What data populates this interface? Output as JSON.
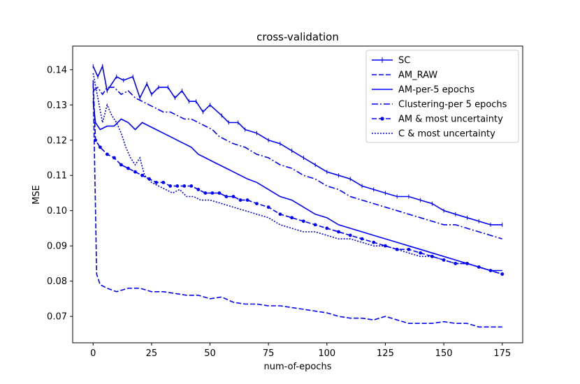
{
  "chart_data": {
    "type": "line",
    "title": "cross-validation",
    "xlabel": "num-of-epochs",
    "ylabel": "MSE",
    "xlim": [
      -8.75,
      183.75
    ],
    "ylim": [
      0.0625,
      0.1467
    ],
    "xticks": [
      0,
      25,
      50,
      75,
      100,
      125,
      150,
      175
    ],
    "yticks": [
      0.07,
      0.08,
      0.09,
      0.1,
      0.11,
      0.12,
      0.13,
      0.14
    ],
    "ytick_labels": [
      "0.07",
      "0.08",
      "0.09",
      "0.10",
      "0.11",
      "0.12",
      "0.13",
      "0.14"
    ],
    "grid": false,
    "legend_position": "top-right",
    "color": "#0000ff",
    "series": [
      {
        "name": "SC",
        "style": "solid-plus",
        "points": [
          [
            0,
            0.141
          ],
          [
            2,
            0.138
          ],
          [
            4,
            0.141
          ],
          [
            6,
            0.134
          ],
          [
            10,
            0.138
          ],
          [
            13,
            0.137
          ],
          [
            17,
            0.138
          ],
          [
            20,
            0.132
          ],
          [
            23,
            0.136
          ],
          [
            25,
            0.133
          ],
          [
            28,
            0.135
          ],
          [
            32,
            0.135
          ],
          [
            35,
            0.132
          ],
          [
            38,
            0.134
          ],
          [
            41,
            0.131
          ],
          [
            44,
            0.131
          ],
          [
            47,
            0.128
          ],
          [
            50,
            0.13
          ],
          [
            55,
            0.127
          ],
          [
            58,
            0.125
          ],
          [
            62,
            0.125
          ],
          [
            65,
            0.123
          ],
          [
            70,
            0.122
          ],
          [
            75,
            0.12
          ],
          [
            80,
            0.119
          ],
          [
            85,
            0.117
          ],
          [
            90,
            0.115
          ],
          [
            95,
            0.113
          ],
          [
            100,
            0.111
          ],
          [
            105,
            0.11
          ],
          [
            110,
            0.109
          ],
          [
            115,
            0.107
          ],
          [
            120,
            0.106
          ],
          [
            125,
            0.105
          ],
          [
            130,
            0.104
          ],
          [
            135,
            0.104
          ],
          [
            140,
            0.103
          ],
          [
            145,
            0.102
          ],
          [
            150,
            0.1
          ],
          [
            155,
            0.099
          ],
          [
            160,
            0.098
          ],
          [
            165,
            0.097
          ],
          [
            170,
            0.096
          ],
          [
            175,
            0.096
          ]
        ]
      },
      {
        "name": "AM_RAW",
        "style": "dashed",
        "points": [
          [
            0,
            0.136
          ],
          [
            1,
            0.101
          ],
          [
            1.5,
            0.082
          ],
          [
            3,
            0.079
          ],
          [
            6,
            0.078
          ],
          [
            10,
            0.077
          ],
          [
            15,
            0.078
          ],
          [
            20,
            0.078
          ],
          [
            25,
            0.077
          ],
          [
            30,
            0.077
          ],
          [
            35,
            0.0765
          ],
          [
            40,
            0.076
          ],
          [
            45,
            0.076
          ],
          [
            50,
            0.075
          ],
          [
            55,
            0.0755
          ],
          [
            60,
            0.074
          ],
          [
            65,
            0.0735
          ],
          [
            70,
            0.0735
          ],
          [
            75,
            0.073
          ],
          [
            80,
            0.073
          ],
          [
            85,
            0.0725
          ],
          [
            90,
            0.072
          ],
          [
            95,
            0.0715
          ],
          [
            100,
            0.071
          ],
          [
            105,
            0.07
          ],
          [
            110,
            0.0695
          ],
          [
            115,
            0.0695
          ],
          [
            120,
            0.069
          ],
          [
            125,
            0.07
          ],
          [
            130,
            0.069
          ],
          [
            135,
            0.068
          ],
          [
            140,
            0.068
          ],
          [
            145,
            0.068
          ],
          [
            150,
            0.0685
          ],
          [
            155,
            0.068
          ],
          [
            160,
            0.068
          ],
          [
            165,
            0.067
          ],
          [
            170,
            0.067
          ],
          [
            175,
            0.067
          ]
        ]
      },
      {
        "name": "AM-per-5 epochs",
        "style": "solid",
        "points": [
          [
            0,
            0.131
          ],
          [
            1,
            0.125
          ],
          [
            3,
            0.123
          ],
          [
            6,
            0.124
          ],
          [
            9,
            0.124
          ],
          [
            12,
            0.126
          ],
          [
            15,
            0.125
          ],
          [
            18,
            0.123
          ],
          [
            21,
            0.125
          ],
          [
            24,
            0.124
          ],
          [
            27,
            0.123
          ],
          [
            30,
            0.122
          ],
          [
            33,
            0.121
          ],
          [
            36,
            0.12
          ],
          [
            39,
            0.119
          ],
          [
            42,
            0.118
          ],
          [
            45,
            0.116
          ],
          [
            48,
            0.115
          ],
          [
            51,
            0.114
          ],
          [
            54,
            0.113
          ],
          [
            57,
            0.112
          ],
          [
            60,
            0.111
          ],
          [
            63,
            0.11
          ],
          [
            66,
            0.109
          ],
          [
            70,
            0.108
          ],
          [
            75,
            0.106
          ],
          [
            80,
            0.104
          ],
          [
            85,
            0.103
          ],
          [
            90,
            0.101
          ],
          [
            95,
            0.099
          ],
          [
            100,
            0.098
          ],
          [
            105,
            0.096
          ],
          [
            110,
            0.095
          ],
          [
            115,
            0.094
          ],
          [
            120,
            0.093
          ],
          [
            125,
            0.092
          ],
          [
            130,
            0.091
          ],
          [
            135,
            0.09
          ],
          [
            140,
            0.089
          ],
          [
            145,
            0.088
          ],
          [
            150,
            0.087
          ],
          [
            155,
            0.086
          ],
          [
            160,
            0.085
          ],
          [
            165,
            0.084
          ],
          [
            170,
            0.083
          ],
          [
            175,
            0.083
          ]
        ]
      },
      {
        "name": "Clustering-per 5 epochs",
        "style": "dashdot",
        "points": [
          [
            0,
            0.134
          ],
          [
            2,
            0.135
          ],
          [
            4,
            0.133
          ],
          [
            6,
            0.135
          ],
          [
            9,
            0.135
          ],
          [
            12,
            0.133
          ],
          [
            15,
            0.134
          ],
          [
            18,
            0.132
          ],
          [
            21,
            0.131
          ],
          [
            24,
            0.13
          ],
          [
            27,
            0.129
          ],
          [
            30,
            0.128
          ],
          [
            33,
            0.128
          ],
          [
            36,
            0.127
          ],
          [
            39,
            0.126
          ],
          [
            42,
            0.126
          ],
          [
            45,
            0.125
          ],
          [
            48,
            0.124
          ],
          [
            51,
            0.123
          ],
          [
            54,
            0.121
          ],
          [
            57,
            0.12
          ],
          [
            60,
            0.119
          ],
          [
            65,
            0.118
          ],
          [
            70,
            0.116
          ],
          [
            75,
            0.115
          ],
          [
            80,
            0.113
          ],
          [
            85,
            0.112
          ],
          [
            90,
            0.11
          ],
          [
            95,
            0.109
          ],
          [
            100,
            0.107
          ],
          [
            105,
            0.106
          ],
          [
            110,
            0.104
          ],
          [
            115,
            0.103
          ],
          [
            120,
            0.102
          ],
          [
            125,
            0.101
          ],
          [
            130,
            0.1
          ],
          [
            135,
            0.099
          ],
          [
            140,
            0.098
          ],
          [
            145,
            0.097
          ],
          [
            150,
            0.096
          ],
          [
            155,
            0.096
          ],
          [
            160,
            0.095
          ],
          [
            165,
            0.094
          ],
          [
            170,
            0.093
          ],
          [
            175,
            0.092
          ]
        ]
      },
      {
        "name": "AM & most uncertainty",
        "style": "dashed-dot-marker",
        "points": [
          [
            0,
            0.137
          ],
          [
            1,
            0.12
          ],
          [
            3,
            0.118
          ],
          [
            6,
            0.116
          ],
          [
            9,
            0.115
          ],
          [
            12,
            0.113
          ],
          [
            15,
            0.112
          ],
          [
            18,
            0.111
          ],
          [
            21,
            0.11
          ],
          [
            24,
            0.109
          ],
          [
            27,
            0.108
          ],
          [
            30,
            0.108
          ],
          [
            33,
            0.107
          ],
          [
            36,
            0.107
          ],
          [
            39,
            0.107
          ],
          [
            42,
            0.107
          ],
          [
            45,
            0.106
          ],
          [
            48,
            0.105
          ],
          [
            51,
            0.105
          ],
          [
            54,
            0.105
          ],
          [
            57,
            0.104
          ],
          [
            60,
            0.104
          ],
          [
            63,
            0.103
          ],
          [
            66,
            0.103
          ],
          [
            70,
            0.102
          ],
          [
            75,
            0.101
          ],
          [
            80,
            0.099
          ],
          [
            85,
            0.098
          ],
          [
            90,
            0.097
          ],
          [
            95,
            0.096
          ],
          [
            100,
            0.095
          ],
          [
            105,
            0.094
          ],
          [
            110,
            0.093
          ],
          [
            115,
            0.092
          ],
          [
            120,
            0.091
          ],
          [
            125,
            0.09
          ],
          [
            130,
            0.089
          ],
          [
            135,
            0.089
          ],
          [
            140,
            0.088
          ],
          [
            145,
            0.087
          ],
          [
            150,
            0.086
          ],
          [
            155,
            0.085
          ],
          [
            160,
            0.085
          ],
          [
            165,
            0.084
          ],
          [
            170,
            0.083
          ],
          [
            175,
            0.082
          ]
        ]
      },
      {
        "name": "C & most uncertainty",
        "style": "dotted",
        "points": [
          [
            0,
            0.139
          ],
          [
            2,
            0.132
          ],
          [
            4,
            0.125
          ],
          [
            6,
            0.13
          ],
          [
            8,
            0.127
          ],
          [
            10,
            0.125
          ],
          [
            12,
            0.122
          ],
          [
            14,
            0.118
          ],
          [
            16,
            0.115
          ],
          [
            18,
            0.113
          ],
          [
            20,
            0.115
          ],
          [
            22,
            0.11
          ],
          [
            25,
            0.108
          ],
          [
            28,
            0.107
          ],
          [
            31,
            0.106
          ],
          [
            34,
            0.105
          ],
          [
            37,
            0.106
          ],
          [
            40,
            0.104
          ],
          [
            43,
            0.104
          ],
          [
            46,
            0.103
          ],
          [
            50,
            0.103
          ],
          [
            55,
            0.102
          ],
          [
            60,
            0.101
          ],
          [
            65,
            0.1
          ],
          [
            70,
            0.099
          ],
          [
            75,
            0.098
          ],
          [
            80,
            0.096
          ],
          [
            85,
            0.095
          ],
          [
            90,
            0.094
          ],
          [
            95,
            0.094
          ],
          [
            100,
            0.093
          ],
          [
            105,
            0.092
          ],
          [
            110,
            0.092
          ],
          [
            115,
            0.091
          ],
          [
            120,
            0.09
          ],
          [
            125,
            0.09
          ],
          [
            130,
            0.089
          ],
          [
            135,
            0.088
          ],
          [
            140,
            0.087
          ],
          [
            145,
            0.087
          ],
          [
            150,
            0.086
          ],
          [
            155,
            0.085
          ],
          [
            160,
            0.085
          ],
          [
            165,
            0.084
          ],
          [
            170,
            0.083
          ],
          [
            175,
            0.082
          ]
        ]
      }
    ]
  }
}
